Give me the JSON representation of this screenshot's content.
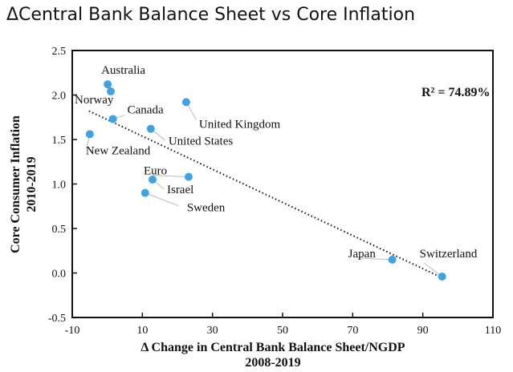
{
  "chart_data": {
    "type": "scatter",
    "title": "ΔCentral Bank Balance Sheet vs  Core Inflation",
    "xlabel": "Δ Change in Central Bank Balance Sheet/NGDP",
    "xlabel2": "2008-2019",
    "ylabel": "Core Consumer Inflation",
    "ylabel2": "2010-2019",
    "xlim": [
      -10,
      110
    ],
    "ylim": [
      -0.5,
      2.5
    ],
    "xticks": [
      "-10",
      "10",
      "30",
      "50",
      "70",
      "90",
      "110"
    ],
    "yticks": [
      "2.5",
      "2.0",
      "1.5",
      "1.0",
      "0.5",
      "0.0",
      "-0.5"
    ],
    "annotation": "R² = 74.89%",
    "trendline": {
      "x": [
        -5.2,
        95.3
      ],
      "y": [
        1.82,
        -0.05
      ]
    },
    "point_color": "#3fa3e3",
    "points": [
      {
        "label": "Australia",
        "x": 0.1,
        "y": 2.12
      },
      {
        "label": "Norway",
        "x": 1.0,
        "y": 2.04
      },
      {
        "label": "Canada",
        "x": 1.6,
        "y": 1.73
      },
      {
        "label": "New Zealand",
        "x": -5.0,
        "y": 1.56
      },
      {
        "label": "United Kingdom",
        "x": 22.5,
        "y": 1.92
      },
      {
        "label": "United States",
        "x": 12.4,
        "y": 1.62
      },
      {
        "label": "Euro",
        "x": 23.2,
        "y": 1.08
      },
      {
        "label": "Israel",
        "x": 12.9,
        "y": 1.05
      },
      {
        "label": "Sweden",
        "x": 10.8,
        "y": 0.9
      },
      {
        "label": "Japan",
        "x": 81.3,
        "y": 0.15
      },
      {
        "label": "Switzerland",
        "x": 95.5,
        "y": -0.04
      }
    ]
  }
}
